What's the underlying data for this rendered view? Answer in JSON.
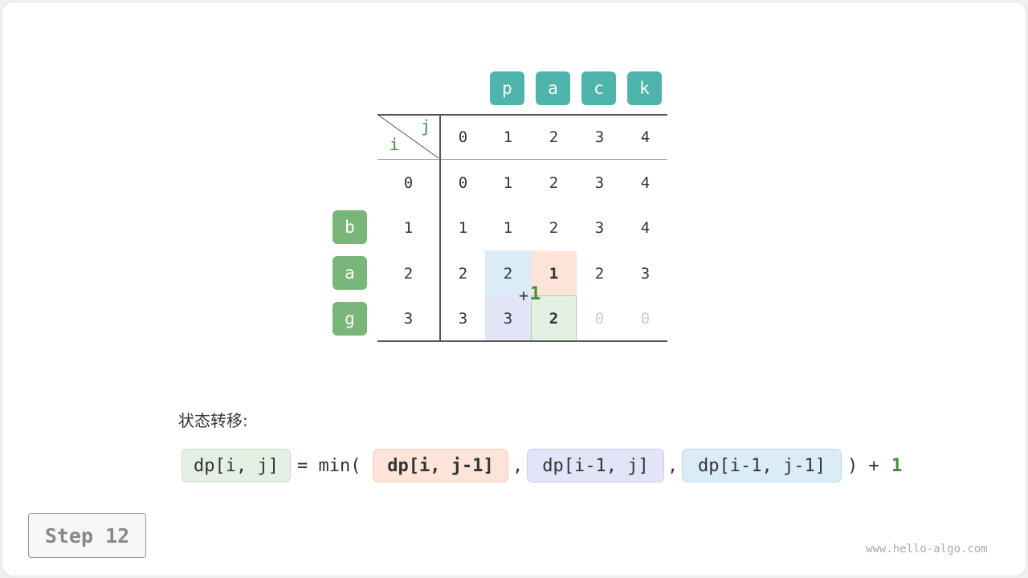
{
  "string_a": [
    "p",
    "a",
    "c",
    "k"
  ],
  "string_b": [
    "b",
    "a",
    "g"
  ],
  "header": {
    "i": "i",
    "j": "j",
    "cols": [
      "0",
      "1",
      "2",
      "3",
      "4"
    ]
  },
  "rows": [
    {
      "i": "0",
      "cells": [
        "0",
        "1",
        "2",
        "3",
        "4"
      ]
    },
    {
      "i": "1",
      "cells": [
        "1",
        "1",
        "2",
        "3",
        "4"
      ]
    },
    {
      "i": "2",
      "cells": [
        "2",
        "2",
        "1",
        "2",
        "3"
      ]
    },
    {
      "i": "3",
      "cells": [
        "3",
        "3",
        "2",
        "0",
        "0"
      ]
    }
  ],
  "plus_one": {
    "plus": "+",
    "one": "1"
  },
  "formula": {
    "label": "状态转移:",
    "lhs": "dp[i, j]",
    "eq": "= min(",
    "a": "dp[i, j-1]",
    "comma1": ",",
    "b": "dp[i-1, j]",
    "comma2": ",",
    "c": "dp[i-1, j-1]",
    "close": ") +",
    "plus": "1"
  },
  "step": "Step 12",
  "watermark": "www.hello-algo.com",
  "colors": {
    "teal": "#4fb5ac",
    "green": "#7ab57a",
    "blue": "#dbecf9",
    "orange": "#fde3d8",
    "purple": "#e2e5f8",
    "greencell": "#e3f0e3"
  }
}
